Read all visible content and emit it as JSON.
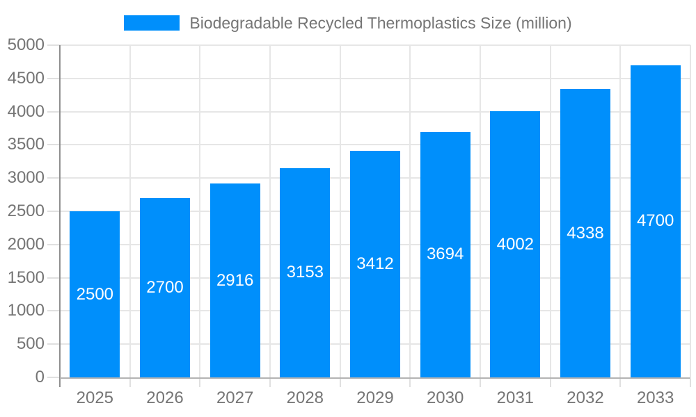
{
  "chart_data": {
    "type": "bar",
    "title": "",
    "series_name": "Biodegradable Recycled Thermoplastics Size (million)",
    "categories": [
      "2025",
      "2026",
      "2027",
      "2028",
      "2029",
      "2030",
      "2031",
      "2032",
      "2033"
    ],
    "values": [
      2500,
      2700,
      2916,
      3153,
      3412,
      3694,
      4002,
      4338,
      4700
    ],
    "xlabel": "",
    "ylabel": "",
    "ylim": [
      0,
      5000
    ],
    "ytick_step": 500,
    "grid": true,
    "legend_position": "top",
    "value_labels_inside_bars": true,
    "colors": {
      "bar": "#008FFB",
      "gridline": "#E6E6E6",
      "tick": "#E0E0E0",
      "y_axis": "#8F8F8F",
      "x_axis": "#B3B3B3",
      "axis_label": "#757575",
      "value_label": "#FFFFFF"
    }
  }
}
